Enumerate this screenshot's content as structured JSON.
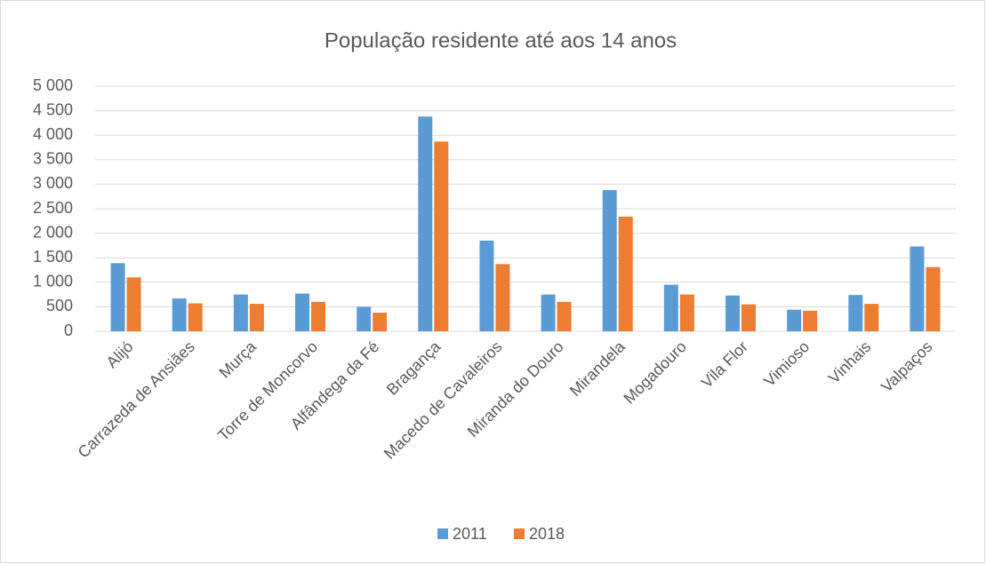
{
  "chart_data": {
    "type": "bar",
    "title": "População residente até aos 14 anos",
    "categories": [
      "Alijó",
      "Carrazeda de Ansiães",
      "Murça",
      "Torre de Moncorvo",
      "Alfândega da Fé",
      "Bragança",
      "Macedo de Cavaleiros",
      "Miranda do Douro",
      "Mirandela",
      "Mogadouro",
      "Vila Flor",
      "Vimioso",
      "Vinhais",
      "Valpaços"
    ],
    "series": [
      {
        "name": "2011",
        "color": "#5b9bd5",
        "values": [
          1390,
          670,
          750,
          770,
          500,
          4380,
          1850,
          750,
          2880,
          950,
          730,
          440,
          740,
          1730
        ]
      },
      {
        "name": "2018",
        "color": "#ed7d31",
        "values": [
          1100,
          570,
          560,
          600,
          380,
          3870,
          1370,
          600,
          2340,
          750,
          550,
          420,
          560,
          1310
        ]
      }
    ],
    "ylim": [
      0,
      5000
    ],
    "yticks": [
      0,
      500,
      {
        "value": 1000,
        "label": "1 000"
      },
      {
        "value": 1500,
        "label": "1 500"
      },
      {
        "value": 2000,
        "label": "2 000"
      },
      {
        "value": 2500,
        "label": "2 500"
      },
      {
        "value": 3000,
        "label": "3 000"
      },
      {
        "value": 3500,
        "label": "3 500"
      },
      {
        "value": 4000,
        "label": "4 000"
      },
      {
        "value": 4500,
        "label": "4 500"
      },
      {
        "value": 5000,
        "label": "5 000"
      }
    ],
    "grid": true,
    "legend": "bottom"
  }
}
